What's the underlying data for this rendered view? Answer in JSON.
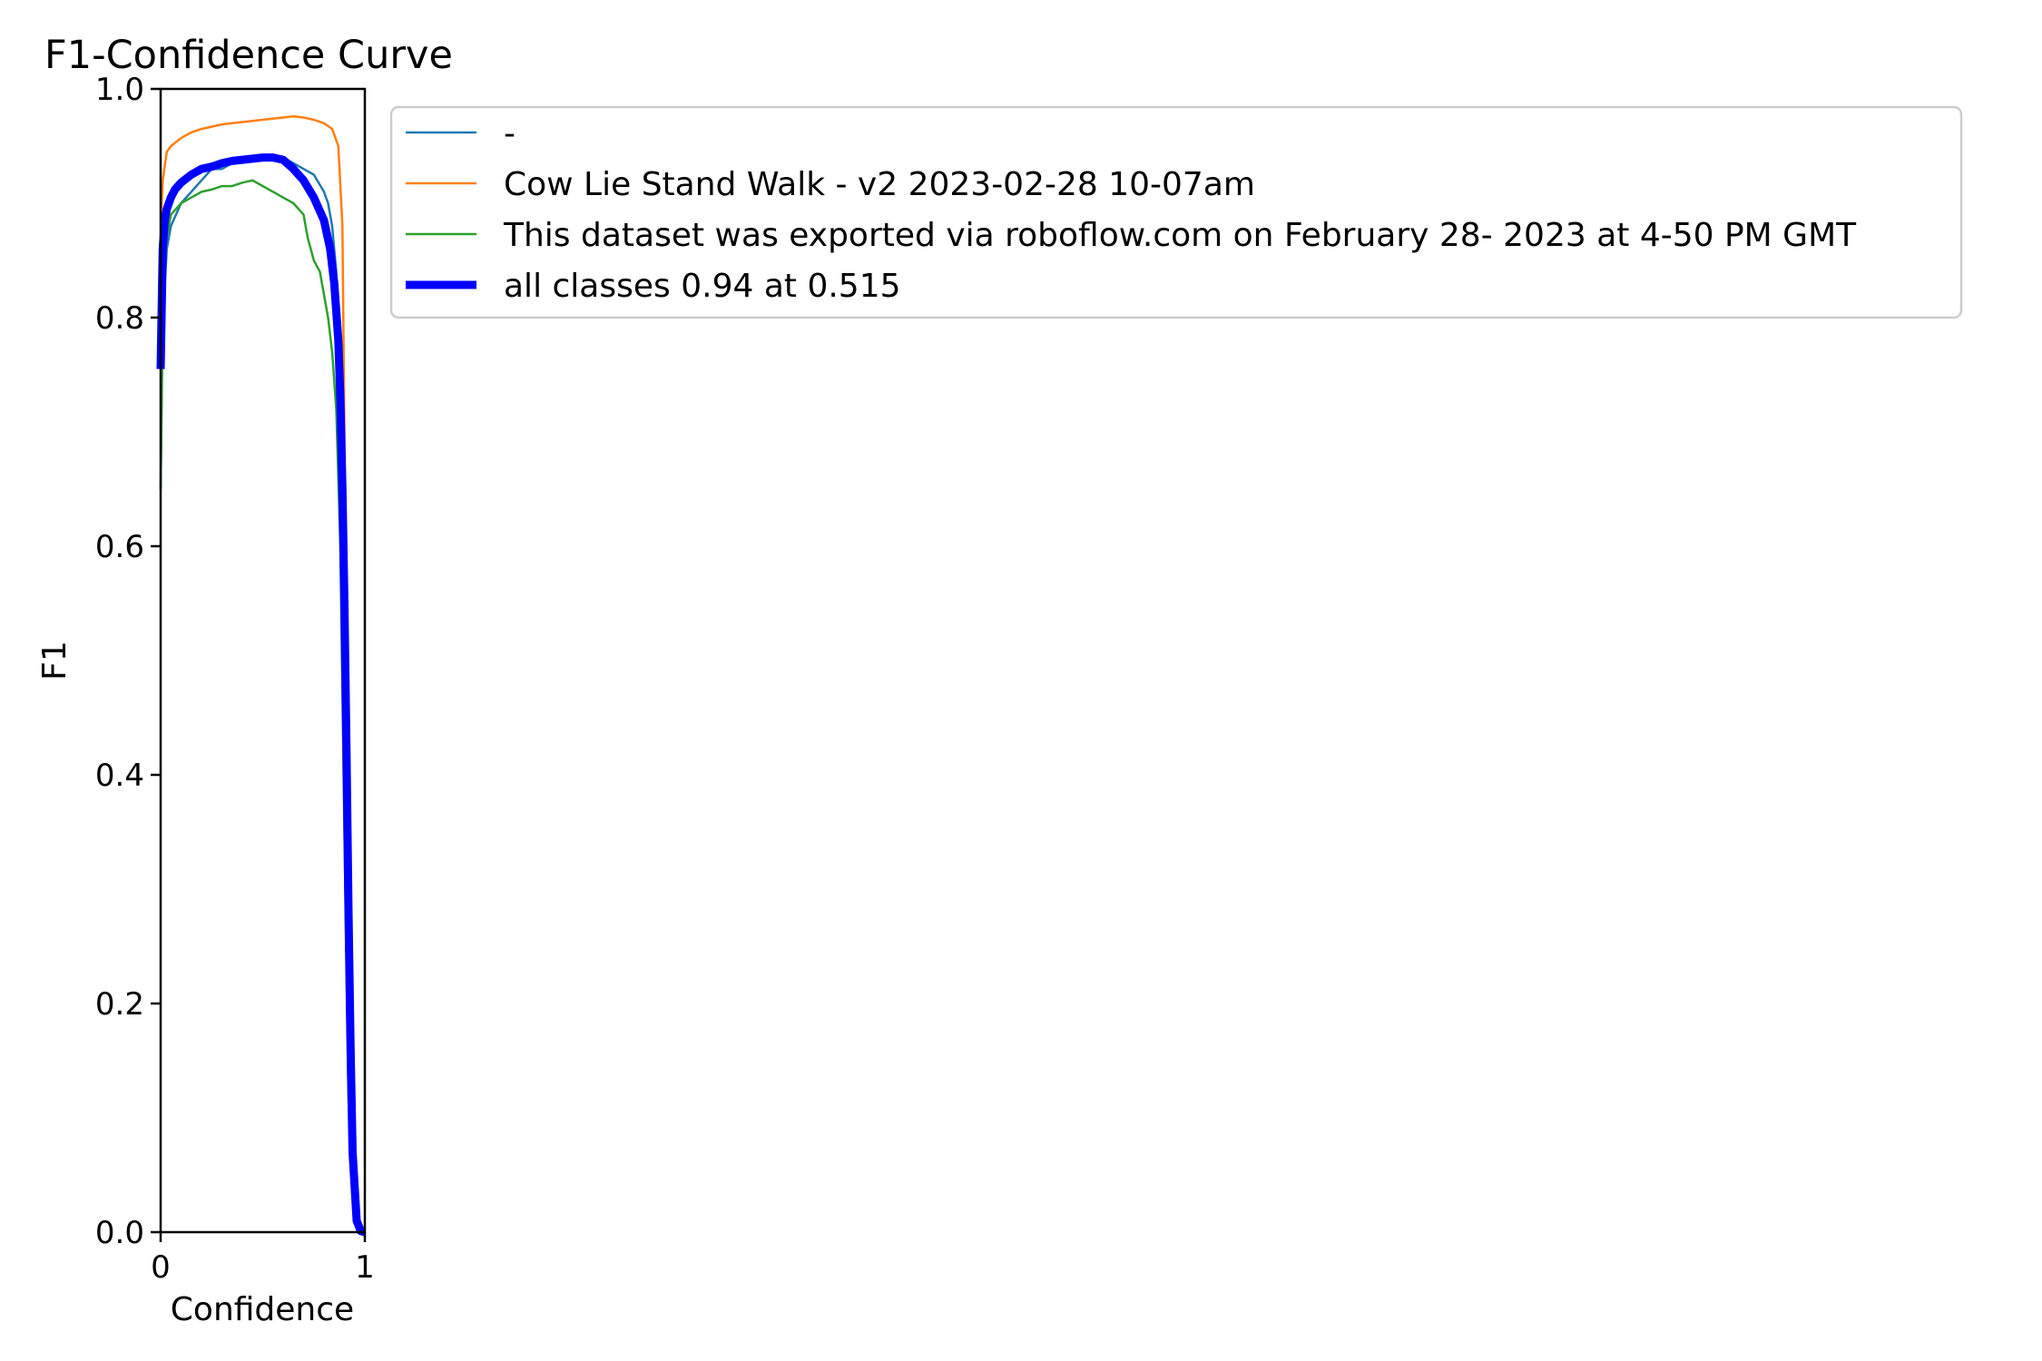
{
  "chart_data": {
    "type": "line",
    "title": "F1-Confidence Curve",
    "xlabel": "Confidence",
    "ylabel": "F1",
    "xlim": [
      0,
      1
    ],
    "ylim": [
      0,
      1
    ],
    "xticks": [
      "0",
      "1"
    ],
    "yticks": [
      "0.0",
      "0.2",
      "0.4",
      "0.6",
      "0.8",
      "1.0"
    ],
    "grid": false,
    "legend": "outside-top-right",
    "series": [
      {
        "name": "-",
        "color": "#1f77b4",
        "x": [
          0,
          0.01,
          0.03,
          0.05,
          0.1,
          0.15,
          0.2,
          0.25,
          0.3,
          0.35,
          0.4,
          0.45,
          0.5,
          0.55,
          0.6,
          0.65,
          0.7,
          0.75,
          0.8,
          0.82,
          0.84,
          0.86,
          0.88,
          0.9,
          0.92,
          0.94,
          0.96,
          0.98,
          1.0
        ],
        "y": [
          0.65,
          0.8,
          0.86,
          0.88,
          0.9,
          0.91,
          0.92,
          0.93,
          0.93,
          0.935,
          0.94,
          0.94,
          0.942,
          0.942,
          0.94,
          0.935,
          0.93,
          0.925,
          0.91,
          0.9,
          0.88,
          0.84,
          0.72,
          0.4,
          0.15,
          0.03,
          0.005,
          0,
          0
        ]
      },
      {
        "name": "Cow Lie Stand Walk - v2 2023-02-28 10-07am",
        "color": "#ff7f0e",
        "x": [
          0,
          0.01,
          0.03,
          0.05,
          0.1,
          0.15,
          0.2,
          0.25,
          0.3,
          0.35,
          0.4,
          0.45,
          0.5,
          0.55,
          0.6,
          0.65,
          0.7,
          0.75,
          0.8,
          0.84,
          0.87,
          0.89,
          0.9,
          0.91,
          0.92,
          0.94,
          0.96,
          0.98,
          1.0
        ],
        "y": [
          0.88,
          0.92,
          0.945,
          0.95,
          0.957,
          0.962,
          0.965,
          0.967,
          0.969,
          0.97,
          0.971,
          0.972,
          0.973,
          0.974,
          0.975,
          0.976,
          0.975,
          0.973,
          0.97,
          0.965,
          0.95,
          0.88,
          0.7,
          0.45,
          0.2,
          0.05,
          0.01,
          0,
          0
        ]
      },
      {
        "name": "This dataset was exported via roboflow.com on February 28- 2023 at 4-50 PM GMT",
        "color": "#2ca02c",
        "x": [
          0,
          0.01,
          0.03,
          0.05,
          0.1,
          0.15,
          0.2,
          0.25,
          0.3,
          0.35,
          0.4,
          0.45,
          0.5,
          0.55,
          0.6,
          0.65,
          0.7,
          0.72,
          0.75,
          0.78,
          0.8,
          0.82,
          0.84,
          0.86,
          0.88,
          0.9,
          0.92,
          0.94,
          0.96,
          0.98,
          1.0
        ],
        "y": [
          0.65,
          0.82,
          0.87,
          0.89,
          0.9,
          0.905,
          0.91,
          0.912,
          0.915,
          0.915,
          0.918,
          0.92,
          0.915,
          0.91,
          0.905,
          0.9,
          0.89,
          0.87,
          0.85,
          0.84,
          0.82,
          0.8,
          0.77,
          0.72,
          0.6,
          0.35,
          0.12,
          0.03,
          0.005,
          0,
          0
        ]
      },
      {
        "name": "all classes 0.94 at 0.515",
        "color": "#0000ff",
        "thick": true,
        "x": [
          0,
          0.01,
          0.02,
          0.03,
          0.05,
          0.07,
          0.1,
          0.15,
          0.2,
          0.25,
          0.3,
          0.35,
          0.4,
          0.45,
          0.5,
          0.515,
          0.55,
          0.6,
          0.65,
          0.7,
          0.75,
          0.8,
          0.83,
          0.85,
          0.87,
          0.88,
          0.89,
          0.9,
          0.91,
          0.92,
          0.93,
          0.94,
          0.96,
          0.98,
          1.0
        ],
        "y": [
          0.755,
          0.86,
          0.885,
          0.895,
          0.905,
          0.912,
          0.918,
          0.925,
          0.93,
          0.932,
          0.935,
          0.937,
          0.938,
          0.939,
          0.94,
          0.94,
          0.94,
          0.938,
          0.93,
          0.92,
          0.905,
          0.885,
          0.86,
          0.83,
          0.78,
          0.73,
          0.65,
          0.55,
          0.42,
          0.28,
          0.16,
          0.07,
          0.01,
          0.001,
          0
        ]
      }
    ]
  }
}
